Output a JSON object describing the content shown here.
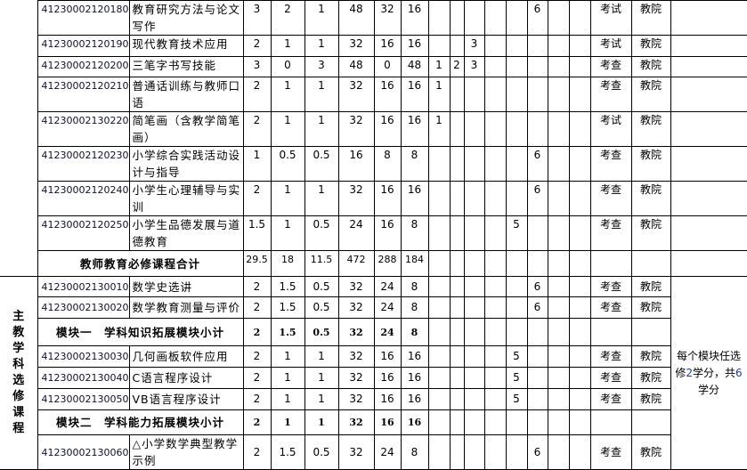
{
  "section1_rows": [
    {
      "code": "41230002120180",
      "name": "教育研究方法与论文写作",
      "credits": "3",
      "credit_theory": "2",
      "credit_practice": "1",
      "hours": "48",
      "hours_theory": "32",
      "hours_practice": "16",
      "semesters": [
        "",
        "",
        "",
        "",
        "",
        "6",
        "",
        ""
      ],
      "assessment": "考试",
      "dept": "教院"
    },
    {
      "code": "41230002120190",
      "name": "现代教育技术应用",
      "credits": "2",
      "credit_theory": "1",
      "credit_practice": "1",
      "hours": "32",
      "hours_theory": "16",
      "hours_practice": "16",
      "semesters": [
        "",
        "",
        "3",
        "",
        "",
        "",
        "",
        ""
      ],
      "assessment": "考试",
      "dept": "教院"
    },
    {
      "code": "41230002120200",
      "name": "三笔字书写技能",
      "credits": "3",
      "credit_theory": "0",
      "credit_practice": "3",
      "hours": "48",
      "hours_theory": "0",
      "hours_practice": "48",
      "semesters": [
        "1",
        "2",
        "3",
        "",
        "",
        "",
        "",
        ""
      ],
      "assessment": "考查",
      "dept": "教院"
    },
    {
      "code": "41230002120210",
      "name": "普通话训练与教师口语",
      "credits": "2",
      "credit_theory": "1",
      "credit_practice": "1",
      "hours": "32",
      "hours_theory": "16",
      "hours_practice": "16",
      "semesters": [
        "1",
        "",
        "",
        "",
        "",
        "",
        "",
        ""
      ],
      "assessment": "考查",
      "dept": "教院"
    },
    {
      "code": "41230002130220",
      "name": "简笔画（含教学简笔画）",
      "credits": "2",
      "credit_theory": "1",
      "credit_practice": "1",
      "hours": "32",
      "hours_theory": "16",
      "hours_practice": "16",
      "semesters": [
        "1",
        "",
        "",
        "",
        "",
        "",
        "",
        ""
      ],
      "assessment": "考试",
      "dept": "教院"
    },
    {
      "code": "41230002120230",
      "name": "小学综合实践活动设计与指导",
      "credits": "1",
      "credit_theory": "0.5",
      "credit_practice": "0.5",
      "hours": "16",
      "hours_theory": "8",
      "hours_practice": "8",
      "semesters": [
        "",
        "",
        "",
        "",
        "",
        "6",
        "",
        ""
      ],
      "assessment": "考查",
      "dept": "教院"
    },
    {
      "code": "41230002120240",
      "name": "小学生心理辅导与实训",
      "credits": "2",
      "credit_theory": "1",
      "credit_practice": "1",
      "hours": "32",
      "hours_theory": "16",
      "hours_practice": "16",
      "semesters": [
        "",
        "",
        "",
        "",
        "",
        "6",
        "",
        ""
      ],
      "assessment": "考查",
      "dept": "教院"
    },
    {
      "code": "41230002120250",
      "name": "小学生品德发展与道德教育",
      "credits": "1.5",
      "credit_theory": "1",
      "credit_practice": "0.5",
      "hours": "24",
      "hours_theory": "16",
      "hours_practice": "8",
      "semesters": [
        "",
        "",
        "",
        "",
        "5",
        "",
        "",
        ""
      ],
      "assessment": "考查",
      "dept": "教院"
    }
  ],
  "section1_total": {
    "label": "教师教育必修课程合计",
    "credits": "29.5",
    "credit_theory": "18",
    "credit_practice": "11.5",
    "hours": "472",
    "hours_theory": "288",
    "hours_practice": "184"
  },
  "section2": {
    "category": "主教学科选修课程",
    "note_parts": [
      "每个模块任选修",
      "2",
      "学分，共",
      "6",
      "学分"
    ],
    "rows": [
      {
        "type": "course",
        "code": "41230002130010",
        "name": "数学史选讲",
        "credits": "2",
        "credit_theory": "1.5",
        "credit_practice": "0.5",
        "hours": "32",
        "hours_theory": "24",
        "hours_practice": "8",
        "semesters": [
          "",
          "",
          "",
          "",
          "",
          "6",
          "",
          ""
        ],
        "assessment": "考查",
        "dept": "教院"
      },
      {
        "type": "course",
        "code": "41230002130020",
        "name": "数学教育测量与评价",
        "credits": "2",
        "credit_theory": "1.5",
        "credit_practice": "0.5",
        "hours": "32",
        "hours_theory": "24",
        "hours_practice": "8",
        "semesters": [
          "",
          "",
          "",
          "",
          "",
          "6",
          "",
          ""
        ],
        "assessment": "考查",
        "dept": "教院"
      },
      {
        "type": "subtotal",
        "label": "模块一　学科知识拓展模块小计",
        "credits": "2",
        "credit_theory": "1.5",
        "credit_practice": "0.5",
        "hours": "32",
        "hours_theory": "24",
        "hours_practice": "8"
      },
      {
        "type": "course",
        "code": "41230002130030",
        "name": "几何画板软件应用",
        "credits": "2",
        "credit_theory": "1",
        "credit_practice": "1",
        "hours": "32",
        "hours_theory": "16",
        "hours_practice": "16",
        "semesters": [
          "",
          "",
          "",
          "",
          "5",
          "",
          "",
          ""
        ],
        "assessment": "考查",
        "dept": "教院"
      },
      {
        "type": "course",
        "code": "41230002130040",
        "name": "C语言程序设计",
        "credits": "2",
        "credit_theory": "1",
        "credit_practice": "1",
        "hours": "32",
        "hours_theory": "16",
        "hours_practice": "16",
        "semesters": [
          "",
          "",
          "",
          "",
          "5",
          "",
          "",
          ""
        ],
        "assessment": "考查",
        "dept": "教院"
      },
      {
        "type": "course",
        "code": "41230002130050",
        "name": "VB语言程序设计",
        "credits": "2",
        "credit_theory": "1",
        "credit_practice": "1",
        "hours": "32",
        "hours_theory": "16",
        "hours_practice": "16",
        "semesters": [
          "",
          "",
          "",
          "",
          "5",
          "",
          "",
          ""
        ],
        "assessment": "考查",
        "dept": "教院"
      },
      {
        "type": "subtotal",
        "label": "模块二　学科能力拓展模块小计",
        "credits": "2",
        "credit_theory": "1",
        "credit_practice": "1",
        "hours": "32",
        "hours_theory": "16",
        "hours_practice": "16"
      },
      {
        "type": "course",
        "code": "41230002130060",
        "name": "△小学数学典型教学示例",
        "credits": "2",
        "credit_theory": "1.5",
        "credit_practice": "0.5",
        "hours": "32",
        "hours_theory": "24",
        "hours_practice": "8",
        "semesters": [
          "",
          "",
          "",
          "",
          "",
          "6",
          "",
          ""
        ],
        "assessment": "考查",
        "dept": "教院"
      }
    ]
  }
}
